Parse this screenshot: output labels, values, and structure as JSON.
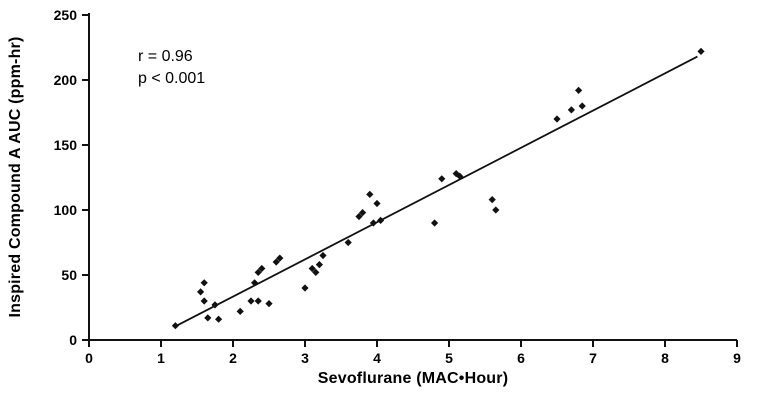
{
  "chart_data": {
    "type": "scatter",
    "title": "",
    "xlabel": "Sevoflurane (MAC•Hour)",
    "ylabel": "Inspired Compound A AUC (ppm-hr)",
    "xlim": [
      0,
      9
    ],
    "ylim": [
      0,
      250
    ],
    "x_ticks": [
      0,
      1,
      2,
      3,
      4,
      5,
      6,
      7,
      8,
      9
    ],
    "y_ticks": [
      0,
      50,
      100,
      150,
      200,
      250
    ],
    "grid": false,
    "legend": "none",
    "annotation": {
      "r_text": "r = 0.96",
      "p_text": "p < 0.001"
    },
    "marker": {
      "shape": "diamond",
      "color": "#111111",
      "size": 3.6
    },
    "line_color": "#111111",
    "points": [
      [
        1.2,
        11
      ],
      [
        1.55,
        37
      ],
      [
        1.6,
        44
      ],
      [
        1.6,
        30
      ],
      [
        1.65,
        17
      ],
      [
        1.75,
        27
      ],
      [
        1.8,
        16
      ],
      [
        2.1,
        22
      ],
      [
        2.25,
        30
      ],
      [
        2.3,
        44
      ],
      [
        2.35,
        52
      ],
      [
        2.35,
        30
      ],
      [
        2.4,
        55
      ],
      [
        2.5,
        28
      ],
      [
        2.6,
        60
      ],
      [
        2.65,
        63
      ],
      [
        3.0,
        40
      ],
      [
        3.1,
        55
      ],
      [
        3.15,
        52
      ],
      [
        3.2,
        58
      ],
      [
        3.25,
        65
      ],
      [
        3.6,
        75
      ],
      [
        3.75,
        95
      ],
      [
        3.8,
        98
      ],
      [
        3.9,
        112
      ],
      [
        3.95,
        90
      ],
      [
        4.0,
        105
      ],
      [
        4.05,
        92
      ],
      [
        4.8,
        90
      ],
      [
        4.9,
        124
      ],
      [
        5.1,
        128
      ],
      [
        5.15,
        126
      ],
      [
        5.6,
        108
      ],
      [
        5.65,
        100
      ],
      [
        6.5,
        170
      ],
      [
        6.7,
        177
      ],
      [
        6.8,
        192
      ],
      [
        6.85,
        180
      ],
      [
        8.5,
        222
      ]
    ],
    "regression_line": {
      "x1": 1.2,
      "y1": 10.5,
      "x2": 8.45,
      "y2": 218
    }
  }
}
